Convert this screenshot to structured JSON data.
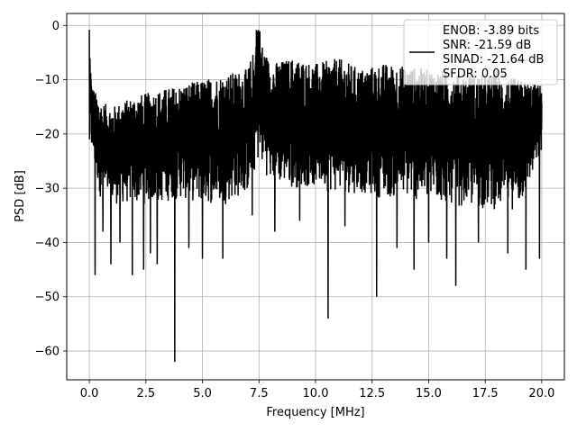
{
  "chart_data": {
    "type": "line",
    "title": "",
    "xlabel": "Frequency [MHz]",
    "ylabel": "PSD [dB]",
    "xlim": [
      -1.0,
      21.0
    ],
    "ylim": [
      -65.3,
      2.2
    ],
    "xticks": [
      0.0,
      2.5,
      5.0,
      7.5,
      10.0,
      12.5,
      15.0,
      17.5,
      20.0
    ],
    "xtick_labels": [
      "0.0",
      "2.5",
      "5.0",
      "7.5",
      "10.0",
      "12.5",
      "15.0",
      "17.5",
      "20.0"
    ],
    "yticks": [
      0,
      -10,
      -20,
      -30,
      -40,
      -50,
      -60
    ],
    "ytick_labels": [
      "0",
      "−10",
      "−20",
      "−30",
      "−40",
      "−50",
      "−60"
    ],
    "grid": true,
    "legend_position": "top-right",
    "series": [
      {
        "name": "ENOB: -3.89 bits\nSNR: -21.59 dB\nSINAD: -21.64 dB\nSFDR: 0.05",
        "color": "#000000",
        "x_range": [
          0.0,
          20.0
        ],
        "envelope_upper": [
          [
            0.0,
            -0.8
          ],
          [
            0.05,
            -6
          ],
          [
            0.1,
            -11
          ],
          [
            0.5,
            -14
          ],
          [
            1.0,
            -15
          ],
          [
            2.0,
            -13
          ],
          [
            3.0,
            -12
          ],
          [
            4.0,
            -11
          ],
          [
            5.0,
            -10
          ],
          [
            6.0,
            -9
          ],
          [
            7.0,
            -8
          ],
          [
            7.3,
            -4
          ],
          [
            7.4,
            -0.2
          ],
          [
            7.5,
            -0.2
          ],
          [
            7.6,
            -3
          ],
          [
            8.0,
            -7
          ],
          [
            9.0,
            -6
          ],
          [
            10.0,
            -7
          ],
          [
            11.0,
            -6
          ],
          [
            12.0,
            -8
          ],
          [
            13.0,
            -7
          ],
          [
            14.0,
            -7.5
          ],
          [
            15.0,
            -8
          ],
          [
            16.0,
            -8.5
          ],
          [
            17.0,
            -9
          ],
          [
            18.0,
            -9
          ],
          [
            19.0,
            -10
          ],
          [
            20.0,
            -11
          ]
        ],
        "envelope_lower": [
          [
            0.0,
            -21
          ],
          [
            0.5,
            -32
          ],
          [
            1.0,
            -33
          ],
          [
            2.0,
            -33
          ],
          [
            3.0,
            -33
          ],
          [
            4.0,
            -32
          ],
          [
            5.0,
            -33
          ],
          [
            6.0,
            -33
          ],
          [
            7.0,
            -31
          ],
          [
            7.5,
            -25
          ],
          [
            8.0,
            -29
          ],
          [
            9.0,
            -30
          ],
          [
            10.0,
            -30
          ],
          [
            11.0,
            -31
          ],
          [
            12.0,
            -31
          ],
          [
            13.0,
            -32
          ],
          [
            14.0,
            -32
          ],
          [
            15.0,
            -33
          ],
          [
            16.0,
            -33
          ],
          [
            17.0,
            -34
          ],
          [
            18.0,
            -34
          ],
          [
            19.0,
            -34
          ],
          [
            20.0,
            -24
          ]
        ],
        "dips": [
          [
            0.25,
            -46
          ],
          [
            0.6,
            -38
          ],
          [
            0.95,
            -44
          ],
          [
            1.35,
            -40
          ],
          [
            1.9,
            -46
          ],
          [
            2.4,
            -45
          ],
          [
            2.7,
            -42
          ],
          [
            3.0,
            -44
          ],
          [
            3.78,
            -62
          ],
          [
            4.4,
            -41
          ],
          [
            5.0,
            -43
          ],
          [
            5.9,
            -43
          ],
          [
            7.2,
            -35
          ],
          [
            8.2,
            -38
          ],
          [
            9.3,
            -36
          ],
          [
            10.55,
            -54
          ],
          [
            11.3,
            -37
          ],
          [
            12.7,
            -50
          ],
          [
            13.6,
            -41
          ],
          [
            14.35,
            -45
          ],
          [
            15.0,
            -40
          ],
          [
            15.8,
            -43
          ],
          [
            16.2,
            -48
          ],
          [
            17.2,
            -40
          ],
          [
            18.5,
            -42
          ],
          [
            19.3,
            -45
          ],
          [
            19.9,
            -43
          ]
        ]
      }
    ],
    "legend_entries": [
      "ENOB: -3.89 bits",
      "SNR: -21.59 dB",
      "SINAD: -21.64 dB",
      "SFDR: 0.05"
    ]
  }
}
